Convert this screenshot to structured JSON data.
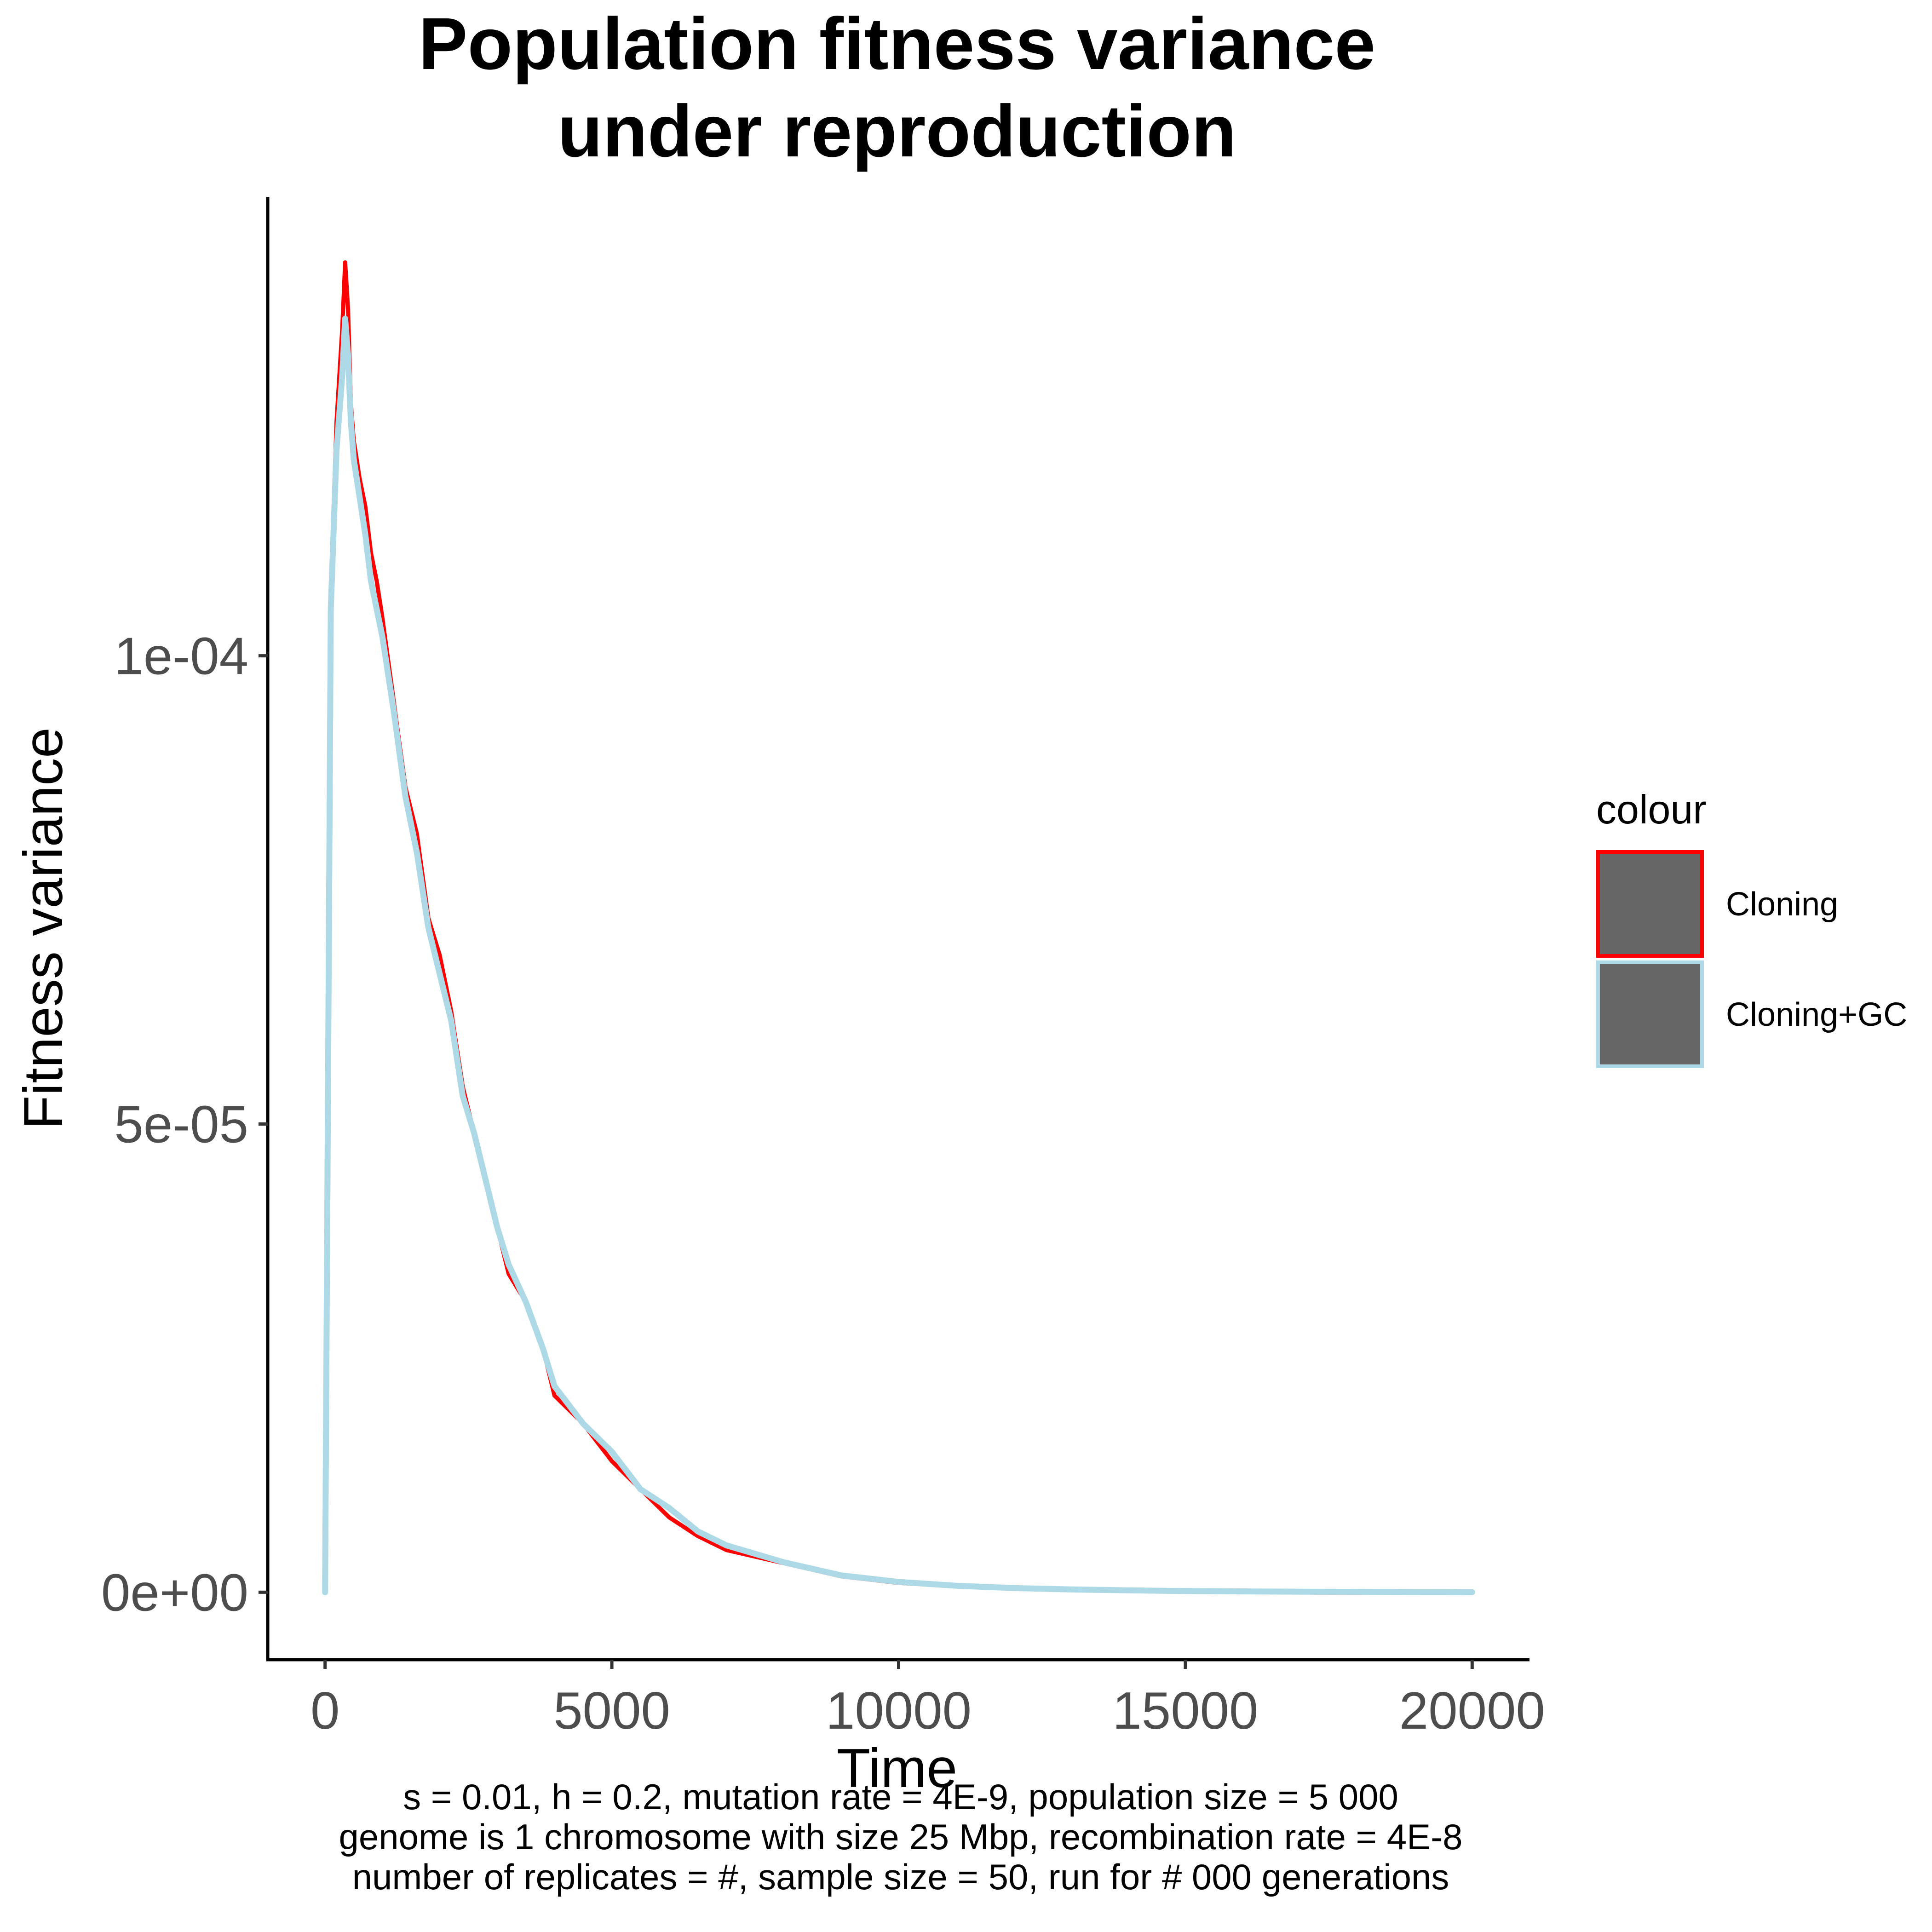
{
  "chart_data": {
    "type": "line",
    "title": [
      "Population fitness variance",
      "under  reproduction"
    ],
    "xlabel": "Time",
    "ylabel": "Fitness variance",
    "xlim": [
      -1000,
      21000
    ],
    "ylim": [
      -7.2e-06,
      0.000149
    ],
    "x_ticks": [
      0,
      5000,
      10000,
      15000,
      20000
    ],
    "x_tick_labels": [
      "0",
      "5000",
      "10000",
      "15000",
      "20000"
    ],
    "y_ticks": [
      0,
      5e-05,
      0.0001
    ],
    "y_tick_labels": [
      "0e+00",
      "5e-05",
      "1e-04"
    ],
    "grid": false,
    "legend": {
      "title": "colour",
      "position": "right",
      "entries": [
        {
          "label": "Cloning",
          "color": "#ff0000"
        },
        {
          "label": "Cloning+GC",
          "color": "#add8e6"
        }
      ]
    },
    "series": [
      {
        "name": "Cloning",
        "color": "#ff0000",
        "x": [
          0,
          100,
          200,
          300,
          350,
          400,
          450,
          500,
          600,
          700,
          800,
          900,
          1000,
          1200,
          1400,
          1600,
          1800,
          2000,
          2200,
          2400,
          2600,
          2800,
          3000,
          3200,
          3500,
          3800,
          4000,
          4500,
          5000,
          5500,
          6000,
          6500,
          7000,
          8000,
          9000,
          10000,
          11000,
          12000,
          13000,
          14000,
          15000,
          16000,
          17000,
          18000,
          19000,
          20000
        ],
        "y": [
          0,
          0.000107,
          0.000125,
          0.000135,
          0.000142,
          0.000137,
          0.000127,
          0.000123,
          0.000119,
          0.000116,
          0.000111,
          0.000108,
          0.000104,
          9.5e-05,
          8.6e-05,
          8.1e-05,
          7.2e-05,
          6.8e-05,
          6.2e-05,
          5.4e-05,
          4.9e-05,
          4.4e-05,
          3.9e-05,
          3.4e-05,
          3.1e-05,
          2.6e-05,
          2.1e-05,
          1.8e-05,
          1.4e-05,
          1.1e-05,
          8e-06,
          6e-06,
          4.5e-06,
          3.1e-06,
          1.7e-06,
          1e-06,
          6.5e-07,
          4e-07,
          2.5e-07,
          1.6e-07,
          1e-07,
          7e-08,
          5e-08,
          3e-08,
          2e-08,
          1e-08
        ]
      },
      {
        "name": "Cloning+GC",
        "color": "#add8e6",
        "x": [
          0,
          100,
          200,
          300,
          350,
          400,
          450,
          500,
          600,
          700,
          800,
          900,
          1000,
          1200,
          1400,
          1600,
          1800,
          2000,
          2200,
          2400,
          2600,
          2800,
          3000,
          3200,
          3500,
          3800,
          4000,
          4500,
          5000,
          5500,
          6000,
          6500,
          7000,
          8000,
          9000,
          10000,
          11000,
          12000,
          13000,
          14000,
          15000,
          16000,
          17000,
          18000,
          19000,
          20000
        ],
        "y": [
          0,
          0.000105,
          0.000122,
          0.00013,
          0.000136,
          0.000132,
          0.000125,
          0.000121,
          0.000117,
          0.000113,
          0.000108,
          0.000105,
          0.000102,
          9.4e-05,
          8.5e-05,
          7.9e-05,
          7.1e-05,
          6.6e-05,
          6.1e-05,
          5.3e-05,
          4.9e-05,
          4.4e-05,
          3.9e-05,
          3.5e-05,
          3.1e-05,
          2.6e-05,
          2.2e-05,
          1.8e-05,
          1.5e-05,
          1.1e-05,
          9e-06,
          6.5e-06,
          5e-06,
          3.2e-06,
          1.8e-06,
          1.1e-06,
          7e-07,
          4.5e-07,
          3e-07,
          2e-07,
          1.3e-07,
          9e-08,
          6e-08,
          4e-08,
          2e-08,
          1e-08
        ]
      }
    ]
  },
  "caption": [
    "s = 0.01, h = 0.2, mutation rate = 4E-9, population size = 5 000",
    "genome is 1 chromosome with size 25 Mbp, recombination rate = 4E-8",
    "number of replicates = #, sample size = 50, run for # 000 generations"
  ]
}
